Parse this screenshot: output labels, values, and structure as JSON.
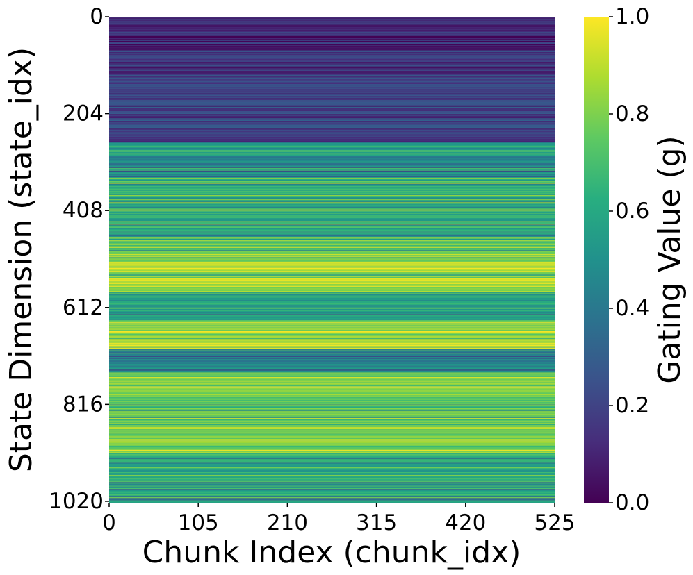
{
  "chart_data": {
    "type": "heatmap",
    "title": "",
    "xlabel": "Chunk Index (chunk_idx)",
    "ylabel": "State Dimension (state_idx)",
    "x_ticks": [
      "0",
      "105",
      "210",
      "315",
      "420",
      "525"
    ],
    "y_ticks": [
      "0",
      "204",
      "408",
      "612",
      "816",
      "1020"
    ],
    "xlim": [
      0,
      525
    ],
    "ylim": [
      0,
      1023
    ],
    "n_rows": 1024,
    "n_cols": 526,
    "row_pattern": "values constant across chunk_idx; each state_idx row has a single gating value",
    "row_value_profile": [
      {
        "state_idx_range": [
          0,
          50
        ],
        "value": 0.1
      },
      {
        "state_idx_range": [
          50,
          120
        ],
        "value": 0.14
      },
      {
        "state_idx_range": [
          120,
          200
        ],
        "value": 0.18
      },
      {
        "state_idx_range": [
          200,
          265
        ],
        "value": 0.2
      },
      {
        "state_idx_range": [
          265,
          340
        ],
        "value": 0.48
      },
      {
        "state_idx_range": [
          340,
          380
        ],
        "value": 0.62
      },
      {
        "state_idx_range": [
          380,
          470
        ],
        "value": 0.6
      },
      {
        "state_idx_range": [
          470,
          500
        ],
        "value": 0.7
      },
      {
        "state_idx_range": [
          500,
          580
        ],
        "value": 0.85
      },
      {
        "state_idx_range": [
          580,
          640
        ],
        "value": 0.55
      },
      {
        "state_idx_range": [
          640,
          700
        ],
        "value": 0.85
      },
      {
        "state_idx_range": [
          700,
          750
        ],
        "value": 0.45
      },
      {
        "state_idx_range": [
          750,
          800
        ],
        "value": 0.78
      },
      {
        "state_idx_range": [
          800,
          860
        ],
        "value": 0.72
      },
      {
        "state_idx_range": [
          860,
          920
        ],
        "value": 0.8
      },
      {
        "state_idx_range": [
          920,
          970
        ],
        "value": 0.6
      },
      {
        "state_idx_range": [
          970,
          1023
        ],
        "value": 0.62
      }
    ],
    "colormap": "viridis",
    "colorbar": {
      "label": "Gating Value (g)",
      "range": [
        0.0,
        1.0
      ],
      "ticks": [
        "0.0",
        "0.2",
        "0.4",
        "0.6",
        "0.8",
        "1.0"
      ]
    },
    "grid": false,
    "legend": "none"
  }
}
